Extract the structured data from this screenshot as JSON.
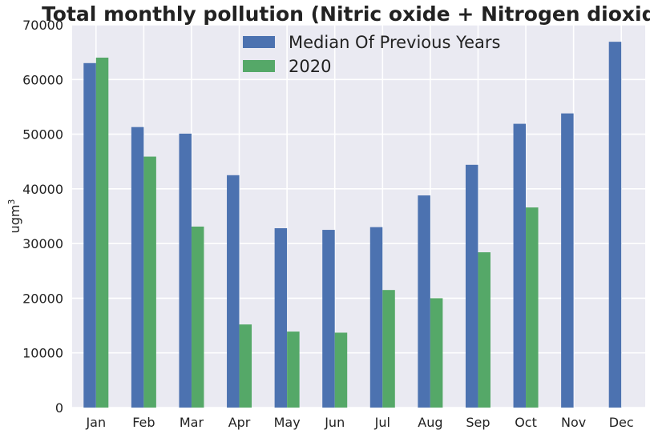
{
  "chart_data": {
    "type": "bar",
    "title": "Total monthly pollution (Nitric oxide + Nitrogen dioxide)",
    "xlabel": "",
    "ylabel": "ugm",
    "ylabel_superscript": "3",
    "categories": [
      "Jan",
      "Feb",
      "Mar",
      "Apr",
      "May",
      "Jun",
      "Jul",
      "Aug",
      "Sep",
      "Oct",
      "Nov",
      "Dec"
    ],
    "series": [
      {
        "name": "Median Of Previous Years",
        "color": "#4c72b0",
        "values": [
          63000,
          51300,
          50100,
          42500,
          32800,
          32500,
          33000,
          38800,
          44400,
          51900,
          53800,
          66900
        ]
      },
      {
        "name": "2020",
        "color": "#55a868",
        "values": [
          64000,
          45900,
          33100,
          15200,
          13900,
          13700,
          21500,
          20000,
          28400,
          36600,
          null,
          null
        ]
      }
    ],
    "ylim": [
      0,
      70000
    ],
    "yticks": [
      0,
      10000,
      20000,
      30000,
      40000,
      50000,
      60000,
      70000
    ],
    "grid": true,
    "legend_position": "top-center",
    "background_color": "#eaeaf2"
  }
}
